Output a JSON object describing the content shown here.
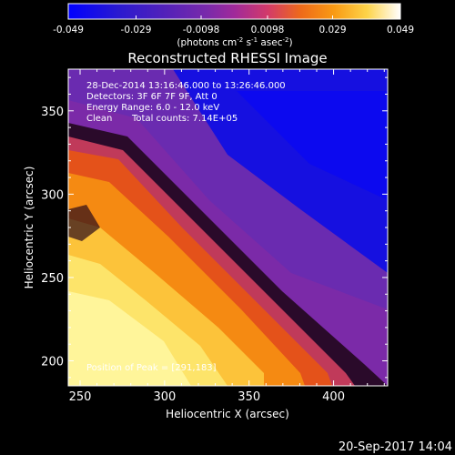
{
  "colorbar": {
    "ticks": [
      "-0.049",
      "-0.029",
      "-0.0098",
      "0.0098",
      "0.029",
      "0.049"
    ],
    "tick_values": [
      -0.049,
      -0.029,
      -0.0098,
      0.0098,
      0.029,
      0.049
    ],
    "range": [
      -0.049,
      0.049
    ],
    "units_prefix": "(photons cm",
    "units_exp1": "-2",
    "units_mid": " s",
    "units_exp2": "-1",
    "units_mid2": " asec",
    "units_exp3": "-2",
    "units_suffix": ")"
  },
  "annotations": {
    "time_range": "28-Dec-2014 13:16:46.000 to 13:26:46.000",
    "detectors": "Detectors: 3F 6F 7F 9F, Att 0",
    "energy": "Energy Range: 6.0 - 12.0 keV",
    "method": "Clean",
    "counts": "Total counts: 7.14E+05",
    "peak": "Position of Peak = [291,183]"
  },
  "footer": {
    "timestamp": "20-Sep-2017 14:04"
  },
  "colors": {
    "background": "#000000",
    "foreground": "#ffffff",
    "colormap": [
      "#0000ff",
      "#3b1fc8",
      "#6a2bb0",
      "#9c2aa8",
      "#c8327a",
      "#e4521a",
      "#f58a12",
      "#fcc33a",
      "#fff47a",
      "#ffffff"
    ]
  },
  "chart_data": {
    "type": "heatmap",
    "title": "Reconstructed RHESSI Image",
    "xlabel": "Heliocentric X (arcsec)",
    "ylabel": "Heliocentric Y (arcsec)",
    "xlim": [
      243,
      432
    ],
    "ylim": [
      185,
      375
    ],
    "xticks": [
      250,
      300,
      350,
      400
    ],
    "yticks": [
      200,
      250,
      300,
      350
    ],
    "colormap_range": [
      -0.049,
      0.049
    ],
    "grid": false,
    "peak_position": [
      291,
      183
    ],
    "description_of_structure": [
      {
        "region": "bright band",
        "approx_center_line": [
          [
            243,
            235
          ],
          [
            300,
            215
          ],
          [
            350,
            195
          ]
        ],
        "value": 0.045
      },
      {
        "region": "upper-right blue area",
        "approx_center": [
          380,
          330
        ],
        "value": -0.045
      }
    ]
  }
}
